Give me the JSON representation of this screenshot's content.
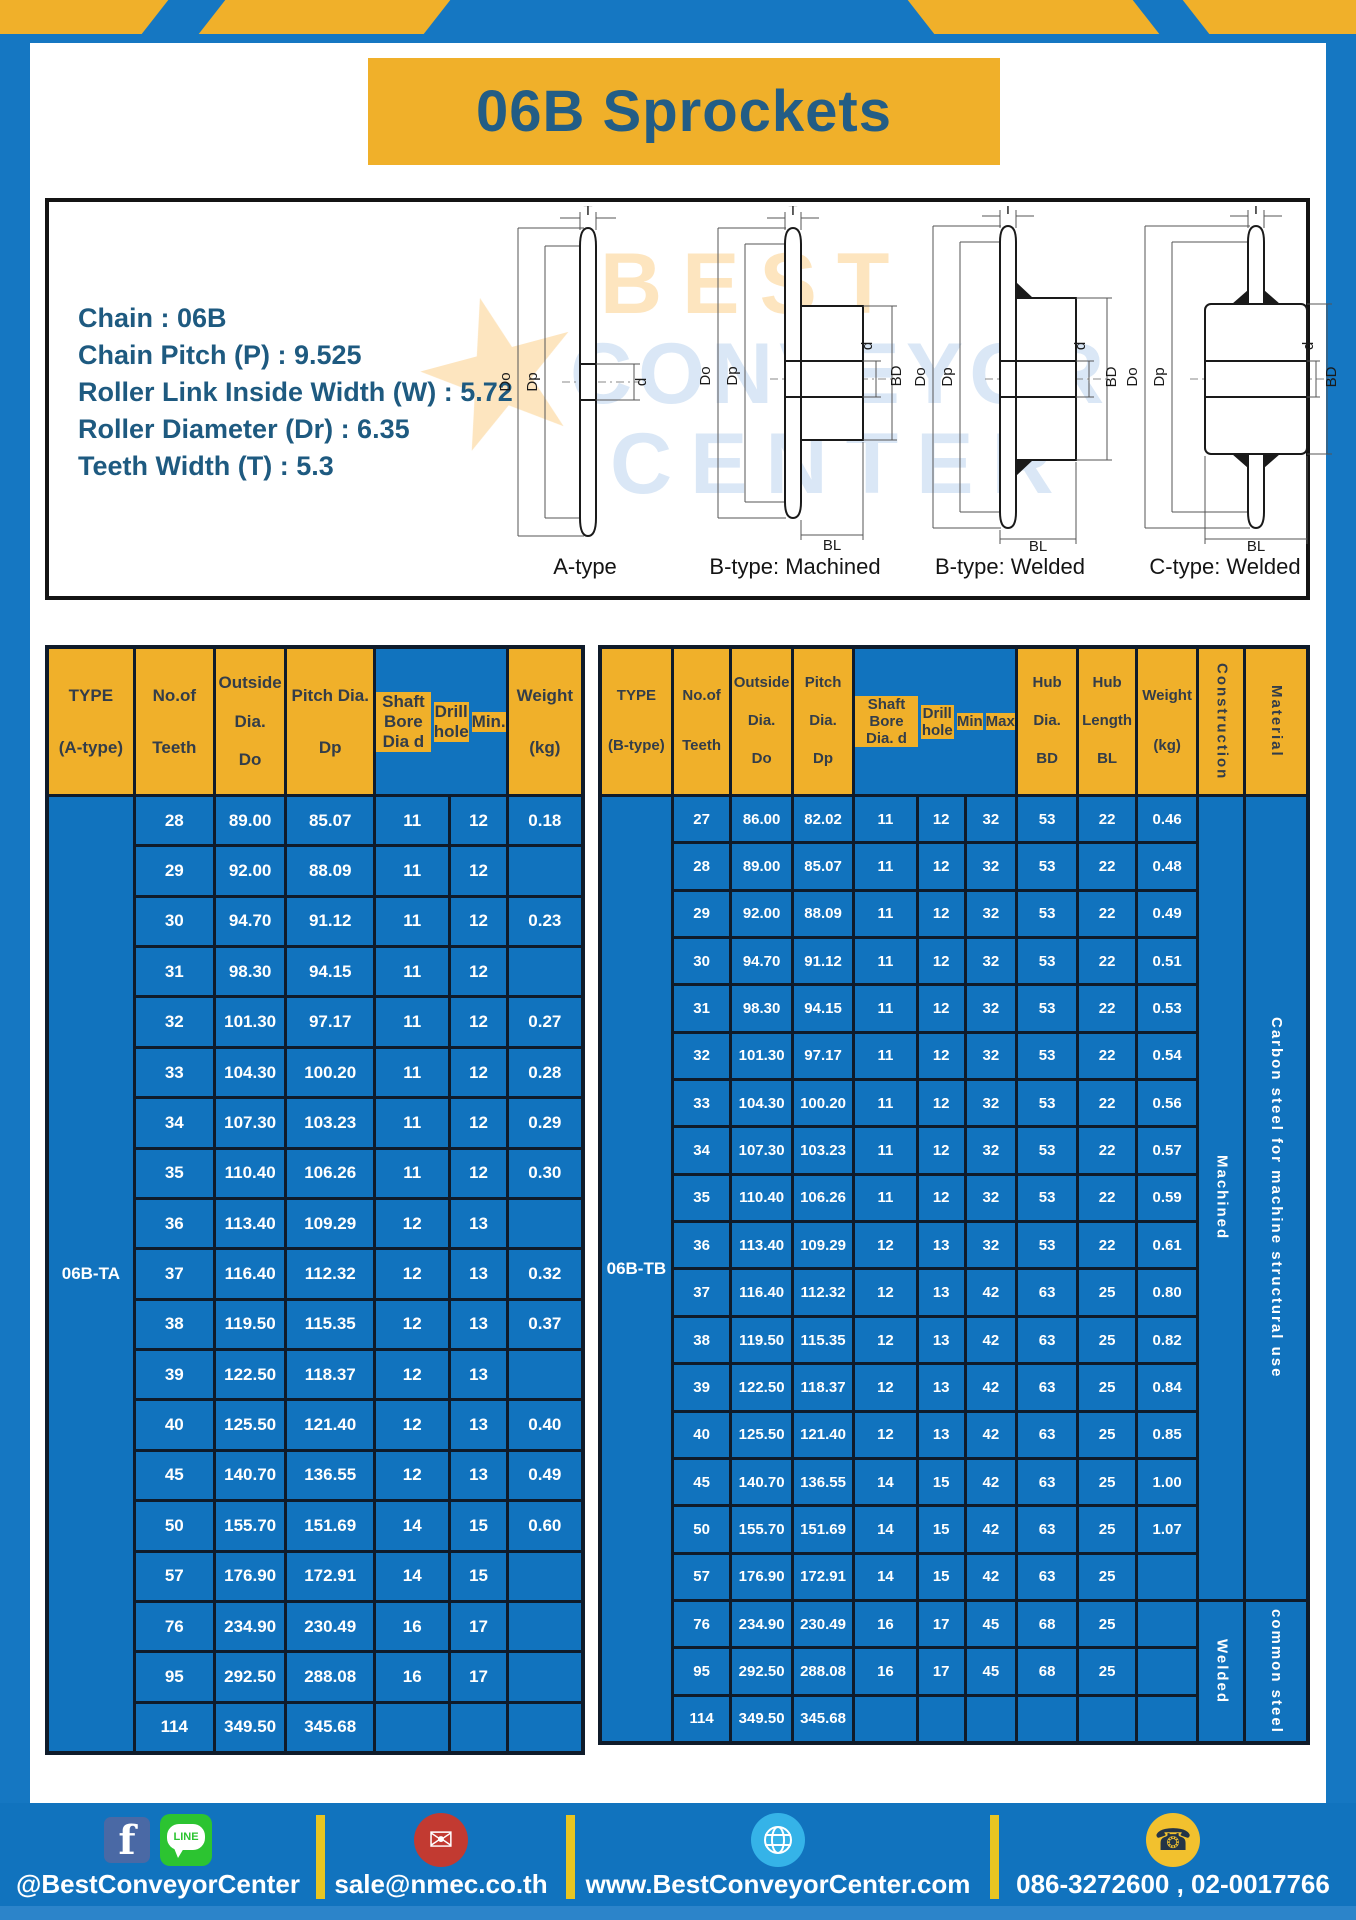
{
  "page": {
    "title": "06B Sprockets"
  },
  "colors": {
    "frame_blue": "#1577c2",
    "cell_blue": "#1173be",
    "accent_yellow": "#f0b02a",
    "border_navy": "#0f1b2a",
    "title_text": "#235d85"
  },
  "specs": {
    "lines": [
      "Chain  : 06B",
      "Chain Pitch (P)  :  9.525",
      "Roller Link Inside Width (W)  :  5.72",
      "Roller Diameter (Dr)  : 6.35",
      "Teeth Width (T)  :  5.3"
    ]
  },
  "watermark": {
    "word1": "BEST",
    "word2": "CONVEYOR",
    "word3": "CENTER",
    "star": "★"
  },
  "drawings": {
    "captions": [
      "A-type",
      "B-type: Machined",
      "B-type: Welded",
      "C-type: Welded"
    ],
    "labels": {
      "t": "T",
      "do": "Do",
      "dp": "Dp",
      "d": "d",
      "bd": "BD",
      "bl": "BL"
    }
  },
  "table_a": {
    "header": {
      "type1": "TYPE",
      "type2": "(A-type)",
      "teeth1": "No.of",
      "teeth2": "Teeth",
      "out1": "Outside",
      "out2": "Dia.",
      "out3": "Do",
      "pitch1": "Pitch Dia.",
      "pitch2": "Dp",
      "bore": "Shaft Bore Dia d",
      "drill": "Drill hole",
      "min": "Min.",
      "w1": "Weight",
      "w2": "(kg)"
    },
    "type_value": "06B-TA",
    "rows": [
      [
        "28",
        "89.00",
        "85.07",
        "11",
        "12",
        "0.18"
      ],
      [
        "29",
        "92.00",
        "88.09",
        "11",
        "12",
        ""
      ],
      [
        "30",
        "94.70",
        "91.12",
        "11",
        "12",
        "0.23"
      ],
      [
        "31",
        "98.30",
        "94.15",
        "11",
        "12",
        ""
      ],
      [
        "32",
        "101.30",
        "97.17",
        "11",
        "12",
        "0.27"
      ],
      [
        "33",
        "104.30",
        "100.20",
        "11",
        "12",
        "0.28"
      ],
      [
        "34",
        "107.30",
        "103.23",
        "11",
        "12",
        "0.29"
      ],
      [
        "35",
        "110.40",
        "106.26",
        "11",
        "12",
        "0.30"
      ],
      [
        "36",
        "113.40",
        "109.29",
        "12",
        "13",
        ""
      ],
      [
        "37",
        "116.40",
        "112.32",
        "12",
        "13",
        "0.32"
      ],
      [
        "38",
        "119.50",
        "115.35",
        "12",
        "13",
        "0.37"
      ],
      [
        "39",
        "122.50",
        "118.37",
        "12",
        "13",
        ""
      ],
      [
        "40",
        "125.50",
        "121.40",
        "12",
        "13",
        "0.40"
      ],
      [
        "45",
        "140.70",
        "136.55",
        "12",
        "13",
        "0.49"
      ],
      [
        "50",
        "155.70",
        "151.69",
        "14",
        "15",
        "0.60"
      ],
      [
        "57",
        "176.90",
        "172.91",
        "14",
        "15",
        ""
      ],
      [
        "76",
        "234.90",
        "230.49",
        "16",
        "17",
        ""
      ],
      [
        "95",
        "292.50",
        "288.08",
        "16",
        "17",
        ""
      ],
      [
        "114",
        "349.50",
        "345.68",
        "",
        "",
        ""
      ]
    ]
  },
  "table_b": {
    "header": {
      "type1": "TYPE",
      "type2": "(B-type)",
      "teeth1": "No.of",
      "teeth2": "Teeth",
      "out1": "Outside",
      "out2": "Dia.",
      "out3": "Do",
      "pitch1": "Pitch",
      "pitch2": "Dia.",
      "pitch3": "Dp",
      "bore": "Shaft Bore Dia. d",
      "drill": "Drill hole",
      "min": "Min",
      "max": "Max",
      "hubd1": "Hub",
      "hubd2": "Dia.",
      "hubd3": "BD",
      "hubl1": "Hub",
      "hubl2": "Length",
      "hubl3": "BL",
      "w1": "Weight",
      "w2": "(kg)",
      "construction": "Construction",
      "material": "Material"
    },
    "type_value": "06B-TB",
    "construction_groups": [
      "Machined",
      "Welded"
    ],
    "material_groups": [
      "Carbon steel for machine structural use",
      "common steel"
    ],
    "rows": [
      [
        "27",
        "86.00",
        "82.02",
        "11",
        "12",
        "32",
        "53",
        "22",
        "0.46"
      ],
      [
        "28",
        "89.00",
        "85.07",
        "11",
        "12",
        "32",
        "53",
        "22",
        "0.48"
      ],
      [
        "29",
        "92.00",
        "88.09",
        "11",
        "12",
        "32",
        "53",
        "22",
        "0.49"
      ],
      [
        "30",
        "94.70",
        "91.12",
        "11",
        "12",
        "32",
        "53",
        "22",
        "0.51"
      ],
      [
        "31",
        "98.30",
        "94.15",
        "11",
        "12",
        "32",
        "53",
        "22",
        "0.53"
      ],
      [
        "32",
        "101.30",
        "97.17",
        "11",
        "12",
        "32",
        "53",
        "22",
        "0.54"
      ],
      [
        "33",
        "104.30",
        "100.20",
        "11",
        "12",
        "32",
        "53",
        "22",
        "0.56"
      ],
      [
        "34",
        "107.30",
        "103.23",
        "11",
        "12",
        "32",
        "53",
        "22",
        "0.57"
      ],
      [
        "35",
        "110.40",
        "106.26",
        "11",
        "12",
        "32",
        "53",
        "22",
        "0.59"
      ],
      [
        "36",
        "113.40",
        "109.29",
        "12",
        "13",
        "32",
        "53",
        "22",
        "0.61"
      ],
      [
        "37",
        "116.40",
        "112.32",
        "12",
        "13",
        "42",
        "63",
        "25",
        "0.80"
      ],
      [
        "38",
        "119.50",
        "115.35",
        "12",
        "13",
        "42",
        "63",
        "25",
        "0.82"
      ],
      [
        "39",
        "122.50",
        "118.37",
        "12",
        "13",
        "42",
        "63",
        "25",
        "0.84"
      ],
      [
        "40",
        "125.50",
        "121.40",
        "12",
        "13",
        "42",
        "63",
        "25",
        "0.85"
      ],
      [
        "45",
        "140.70",
        "136.55",
        "14",
        "15",
        "42",
        "63",
        "25",
        "1.00"
      ],
      [
        "50",
        "155.70",
        "151.69",
        "14",
        "15",
        "42",
        "63",
        "25",
        "1.07"
      ],
      [
        "57",
        "176.90",
        "172.91",
        "14",
        "15",
        "42",
        "63",
        "25",
        ""
      ],
      [
        "76",
        "234.90",
        "230.49",
        "16",
        "17",
        "45",
        "68",
        "25",
        ""
      ],
      [
        "95",
        "292.50",
        "288.08",
        "16",
        "17",
        "45",
        "68",
        "25",
        ""
      ],
      [
        "114",
        "349.50",
        "345.68",
        "",
        "",
        "",
        "",
        "",
        ""
      ]
    ]
  },
  "footer": {
    "facebook": "@BestConveyorCenter",
    "facebook_glyph": "f",
    "line_badge": "LINE",
    "email": "sale@nmec.co.th",
    "email_glyph": "✉",
    "website": "www.BestConveyorCenter.com",
    "phone": "086-3272600 , 02-0017766",
    "phone_glyph": "☎"
  }
}
